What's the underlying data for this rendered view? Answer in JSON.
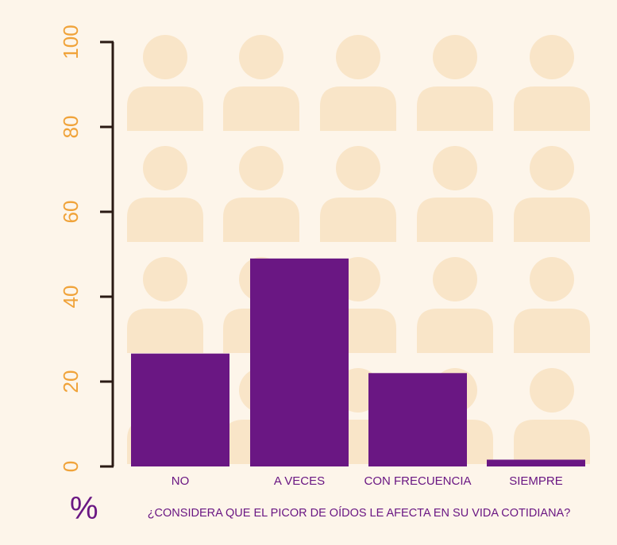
{
  "chart_data": {
    "type": "bar",
    "title": "¿CONSIDERA QUE EL PICOR DE OÍDOS LE AFECTA EN SU VIDA COTIDIANA?",
    "ylabel": "%",
    "xlabel": "",
    "categories": [
      "NO",
      "A VECES",
      "CON FRECUENCIA",
      "SIEMPRE"
    ],
    "values": [
      26.6,
      49,
      22,
      1.6
    ],
    "ylim": [
      0,
      100
    ],
    "yticks": [
      "0",
      "20",
      "40",
      "60",
      "80",
      "100"
    ],
    "grid": false,
    "legend": "none",
    "background_icons": "person-icon",
    "colors": {
      "bar": "#6a1783",
      "axis": "#2a1a14",
      "ytick_text": "#f0a33a",
      "label_text": "#6a1783",
      "background": "#fdf5ea",
      "person_icon": "#f9e5c8"
    }
  }
}
